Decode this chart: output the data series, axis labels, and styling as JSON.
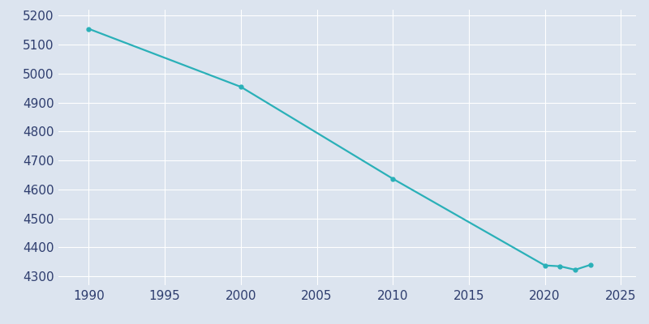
{
  "years": [
    1990,
    2000,
    2010,
    2020,
    2021,
    2022,
    2023
  ],
  "population": [
    5154,
    4954,
    4637,
    4338,
    4335,
    4323,
    4340
  ],
  "line_color": "#2ab0b8",
  "marker_color": "#2ab0b8",
  "background_color": "#dce4ef",
  "axes_face_color": "#dce4ef",
  "grid_color": "#ffffff",
  "tick_label_color": "#2e3d6e",
  "xlim": [
    1988,
    2026
  ],
  "ylim": [
    4270,
    5220
  ],
  "xticks": [
    1990,
    1995,
    2000,
    2005,
    2010,
    2015,
    2020,
    2025
  ],
  "yticks": [
    4300,
    4400,
    4500,
    4600,
    4700,
    4800,
    4900,
    5000,
    5100,
    5200
  ],
  "marker_size": 3.5,
  "line_width": 1.6
}
